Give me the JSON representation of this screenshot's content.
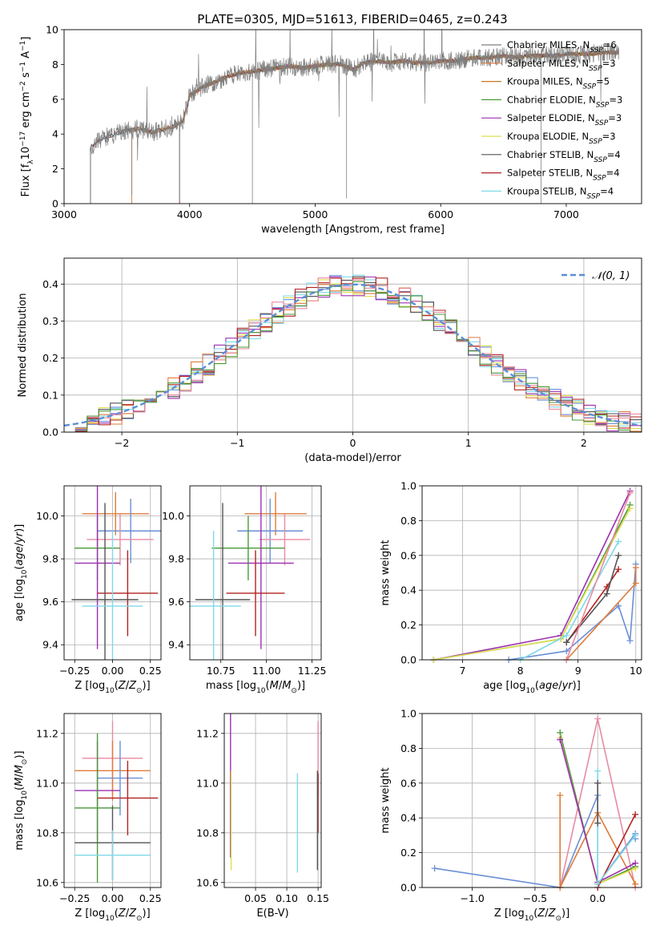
{
  "figure_title": "PLATE=0305, MJD=51613, FIBERID=0465, z=0.243",
  "colors": {
    "chabrier_miles": "#7f7f7f",
    "salpeter_miles": "#e07b39",
    "kroupa_miles": "#c8771e",
    "chabrier_elodie": "#4a9a3a",
    "salpeter_elodie": "#9b30b0",
    "kroupa_elodie": "#dede50",
    "chabrier_stelib": "#555555",
    "salpeter_stelib": "#b22222",
    "kroupa_stelib": "#80d8e8",
    "model_blue": "#6a8fd6",
    "pink": "#e88aa0",
    "normal_curve": "#5b8fd6",
    "grid": "#b0b0b0"
  },
  "chart_data": [
    {
      "id": "spectrum",
      "type": "line",
      "title": "PLATE=0305, MJD=51613, FIBERID=0465, z=0.243",
      "xlabel": "wavelength [Angstrom, rest frame]",
      "ylabel": "Flux [f_λ 10^-17 erg cm^-2 s^-1 A^-1]",
      "xlim": [
        3000,
        7600
      ],
      "ylim": [
        0,
        10
      ],
      "xticks": [
        3000,
        4000,
        5000,
        6000,
        7000
      ],
      "yticks": [
        0,
        2,
        4,
        6,
        8,
        10
      ],
      "grid": false,
      "legend_position": "top-right",
      "legend": [
        {
          "label": "Chabrier MILES, N",
          "sub": "SSP",
          "tail": "=6",
          "color_key": "chabrier_miles"
        },
        {
          "label": "Salpeter MILES, N",
          "sub": "SSP",
          "tail": "=3",
          "color_key": "salpeter_miles"
        },
        {
          "label": "Kroupa MILES, N",
          "sub": "SSP",
          "tail": "=5",
          "color_key": "kroupa_miles"
        },
        {
          "label": "Chabrier ELODIE, N",
          "sub": "SSP",
          "tail": "=3",
          "color_key": "chabrier_elodie"
        },
        {
          "label": "Salpeter ELODIE, N",
          "sub": "SSP",
          "tail": "=3",
          "color_key": "salpeter_elodie"
        },
        {
          "label": "Kroupa ELODIE, N",
          "sub": "SSP",
          "tail": "=3",
          "color_key": "kroupa_elodie"
        },
        {
          "label": "Chabrier STELIB, N",
          "sub": "SSP",
          "tail": "=4",
          "color_key": "chabrier_stelib"
        },
        {
          "label": "Salpeter STELIB, N",
          "sub": "SSP",
          "tail": "=4",
          "color_key": "salpeter_stelib"
        },
        {
          "label": "Kroupa STELIB, N",
          "sub": "SSP",
          "tail": "=4",
          "color_key": "kroupa_stelib"
        }
      ],
      "continuum": {
        "x": [
          3210,
          3300,
          3400,
          3500,
          3600,
          3700,
          3800,
          3900,
          3950,
          4000,
          4100,
          4200,
          4300,
          4400,
          4500,
          4600,
          4700,
          4800,
          4900,
          5000,
          5100,
          5200,
          5300,
          5400,
          5500,
          5600,
          5700,
          5800,
          5900,
          6000,
          6100,
          6200,
          6300,
          6400,
          6500,
          6600,
          6700,
          6800,
          6900,
          7000,
          7100,
          7200,
          7300
        ],
        "y": [
          3.3,
          3.7,
          4.0,
          4.2,
          4.3,
          4.1,
          4.3,
          4.5,
          4.8,
          6.2,
          6.7,
          7.0,
          7.3,
          7.5,
          7.6,
          7.7,
          7.8,
          7.9,
          7.8,
          7.9,
          8.0,
          8.0,
          7.7,
          8.1,
          8.2,
          8.1,
          8.2,
          8.1,
          8.1,
          8.2,
          8.2,
          8.3,
          8.4,
          8.4,
          8.5,
          8.4,
          8.5,
          8.5,
          8.5,
          8.6,
          8.6,
          8.6,
          8.7
        ]
      }
    },
    {
      "id": "residuals",
      "type": "line",
      "xlabel": "(data-model)/error",
      "ylabel": "Normed distribution",
      "xlim": [
        -2.5,
        2.5
      ],
      "ylim": [
        0,
        0.47
      ],
      "xticks": [
        -2,
        -1,
        0,
        1,
        2
      ],
      "yticks": [
        0.0,
        0.1,
        0.2,
        0.3,
        0.4
      ],
      "grid": true,
      "legend_position": "top-right",
      "legend": [
        {
          "label": "𝒩(0, 1)",
          "color_key": "normal_curve",
          "style": "dashed"
        }
      ],
      "bin_width": 0.1
    },
    {
      "id": "age_vs_Z",
      "type": "scatter",
      "xlabel": "Z [log10(Z/Z⊙)]",
      "ylabel": "age  [log10(age/yr)]",
      "xlim": [
        -0.32,
        0.32
      ],
      "ylim": [
        9.33,
        10.14
      ],
      "xticks": [
        -0.25,
        0.0,
        0.25
      ],
      "yticks": [
        9.4,
        9.6,
        9.8,
        10.0
      ],
      "grid": true,
      "points": [
        {
          "x": 0.02,
          "y": 10.01,
          "xerr": 0.22,
          "yerr": 0.1,
          "color_key": "salpeter_miles"
        },
        {
          "x": 0.12,
          "y": 9.93,
          "xerr": 0.22,
          "yerr": 0.15,
          "color_key": "model_blue"
        },
        {
          "x": 0.05,
          "y": 9.89,
          "xerr": 0.22,
          "yerr": 0.12,
          "color_key": "pink"
        },
        {
          "x": -0.1,
          "y": 9.85,
          "xerr": 0.15,
          "yerr": 0.15,
          "color_key": "chabrier_elodie"
        },
        {
          "x": -0.1,
          "y": 9.78,
          "xerr": 0.15,
          "yerr": 0.4,
          "color_key": "salpeter_elodie"
        },
        {
          "x": 0.1,
          "y": 9.64,
          "xerr": 0.2,
          "yerr": 0.2,
          "color_key": "salpeter_stelib"
        },
        {
          "x": -0.05,
          "y": 9.61,
          "xerr": 0.22,
          "yerr": 0.45,
          "color_key": "chabrier_stelib"
        },
        {
          "x": 0.0,
          "y": 9.58,
          "xerr": 0.2,
          "yerr": 0.35,
          "color_key": "kroupa_stelib"
        }
      ]
    },
    {
      "id": "age_vs_mass",
      "type": "scatter",
      "xlabel": "mass [log10(M/M⊙)]",
      "ylabel": "",
      "xlim": [
        10.58,
        11.3
      ],
      "ylim": [
        9.33,
        10.14
      ],
      "xticks": [
        10.75,
        11.0,
        11.25
      ],
      "yticks": [
        9.4,
        9.6,
        9.8,
        10.0
      ],
      "grid": true,
      "points": [
        {
          "x": 11.05,
          "y": 10.01,
          "xerr": 0.17,
          "yerr": 0.1,
          "color_key": "salpeter_miles"
        },
        {
          "x": 11.02,
          "y": 9.93,
          "xerr": 0.18,
          "yerr": 0.15,
          "color_key": "model_blue"
        },
        {
          "x": 11.1,
          "y": 9.89,
          "xerr": 0.14,
          "yerr": 0.12,
          "color_key": "pink"
        },
        {
          "x": 10.9,
          "y": 9.85,
          "xerr": 0.2,
          "yerr": 0.15,
          "color_key": "chabrier_elodie"
        },
        {
          "x": 10.97,
          "y": 9.78,
          "xerr": 0.18,
          "yerr": 0.4,
          "color_key": "salpeter_elodie"
        },
        {
          "x": 10.94,
          "y": 9.64,
          "xerr": 0.16,
          "yerr": 0.2,
          "color_key": "salpeter_stelib"
        },
        {
          "x": 10.76,
          "y": 9.61,
          "xerr": 0.15,
          "yerr": 0.45,
          "color_key": "chabrier_stelib"
        },
        {
          "x": 10.71,
          "y": 9.58,
          "xerr": 0.15,
          "yerr": 0.35,
          "color_key": "kroupa_stelib"
        }
      ]
    },
    {
      "id": "mass_weight_vs_age",
      "type": "line",
      "xlabel": "age  [log10(age/yr)]",
      "ylabel": "mass weight",
      "xlim": [
        6.3,
        10.1
      ],
      "ylim": [
        0,
        1.0
      ],
      "xticks": [
        7,
        8,
        9,
        10
      ],
      "yticks": [
        0.0,
        0.2,
        0.4,
        0.6,
        0.8,
        1.0
      ],
      "grid": true,
      "series": [
        {
          "color_key": "model_blue",
          "x": [
            7.8,
            8.8,
            9.7,
            9.9,
            10.0
          ],
          "y": [
            0.0,
            0.05,
            0.31,
            0.11,
            0.55
          ]
        },
        {
          "color_key": "salpeter_elodie",
          "x": [
            6.5,
            8.7,
            9.9
          ],
          "y": [
            0.0,
            0.14,
            0.97
          ]
        },
        {
          "color_key": "chabrier_elodie",
          "x": [
            6.5,
            8.7,
            9.9
          ],
          "y": [
            0.0,
            0.12,
            0.89
          ]
        },
        {
          "color_key": "kroupa_elodie",
          "x": [
            6.5,
            8.7,
            9.9
          ],
          "y": [
            0.0,
            0.12,
            0.87
          ]
        },
        {
          "color_key": "kroupa_stelib",
          "x": [
            8.0,
            8.8,
            9.7
          ],
          "y": [
            0.0,
            0.14,
            0.68
          ]
        },
        {
          "color_key": "salpeter_stelib",
          "x": [
            8.8,
            9.5,
            9.7
          ],
          "y": [
            0.1,
            0.42,
            0.52
          ]
        },
        {
          "color_key": "chabrier_stelib",
          "x": [
            8.8,
            9.5,
            9.7
          ],
          "y": [
            0.1,
            0.38,
            0.6
          ]
        },
        {
          "color_key": "salpeter_miles",
          "x": [
            8.8,
            10.0,
            10.0
          ],
          "y": [
            0.0,
            0.44,
            0.53
          ]
        },
        {
          "color_key": "pink",
          "x": [
            8.8,
            9.9
          ],
          "y": [
            0.0,
            0.96
          ]
        }
      ]
    },
    {
      "id": "mass_vs_Z",
      "type": "scatter",
      "xlabel": "Z [log10(Z/Z⊙)]",
      "ylabel": "mass [log10(M/M⊙)]",
      "xlim": [
        -0.32,
        0.32
      ],
      "ylim": [
        10.58,
        11.28
      ],
      "xticks": [
        -0.25,
        0.0,
        0.25
      ],
      "yticks": [
        10.6,
        10.8,
        11.0,
        11.2
      ],
      "grid": true,
      "points": [
        {
          "x": 0.0,
          "y": 11.1,
          "xerr": 0.2,
          "yerr": 0.15,
          "color_key": "pink"
        },
        {
          "x": 0.0,
          "y": 11.05,
          "xerr": 0.25,
          "yerr": 0.12,
          "color_key": "salpeter_miles"
        },
        {
          "x": 0.05,
          "y": 11.02,
          "xerr": 0.15,
          "yerr": 0.15,
          "color_key": "model_blue"
        },
        {
          "x": -0.1,
          "y": 10.97,
          "xerr": 0.15,
          "yerr": 0.2,
          "color_key": "salpeter_elodie"
        },
        {
          "x": 0.1,
          "y": 10.94,
          "xerr": 0.2,
          "yerr": 0.15,
          "color_key": "salpeter_stelib"
        },
        {
          "x": -0.1,
          "y": 10.9,
          "xerr": 0.15,
          "yerr": 0.3,
          "color_key": "chabrier_elodie"
        },
        {
          "x": 0.0,
          "y": 10.76,
          "xerr": 0.25,
          "yerr": 0.15,
          "color_key": "chabrier_stelib"
        },
        {
          "x": 0.0,
          "y": 10.71,
          "xerr": 0.25,
          "yerr": 0.1,
          "color_key": "kroupa_stelib"
        }
      ]
    },
    {
      "id": "mass_vs_EBV",
      "type": "scatter",
      "xlabel": "E(B-V)",
      "ylabel": "",
      "xlim": [
        0.0,
        0.155
      ],
      "ylim": [
        10.58,
        11.28
      ],
      "xticks": [
        0.05,
        0.1,
        0.15
      ],
      "yticks": [
        10.6,
        10.8,
        11.0,
        11.2
      ],
      "grid": true,
      "points": [
        {
          "x": 0.01,
          "y": 11.0,
          "yerr": 0.3,
          "color_key": "salpeter_elodie"
        },
        {
          "x": 0.011,
          "y": 10.85,
          "yerr": 0.2,
          "color_key": "kroupa_elodie"
        },
        {
          "x": 0.117,
          "y": 10.84,
          "yerr": 0.2,
          "color_key": "kroupa_stelib"
        },
        {
          "x": 0.15,
          "y": 11.1,
          "yerr": 0.15,
          "color_key": "pink"
        },
        {
          "x": 0.15,
          "y": 10.92,
          "yerr": 0.12,
          "color_key": "salpeter_stelib"
        },
        {
          "x": 0.149,
          "y": 10.85,
          "yerr": 0.2,
          "color_key": "chabrier_stelib"
        }
      ]
    },
    {
      "id": "mass_weight_vs_Z",
      "type": "line",
      "xlabel": "Z [log10(Z/Z⊙)]",
      "ylabel": "mass weight",
      "xlim": [
        -1.4,
        0.35
      ],
      "ylim": [
        0,
        1.0
      ],
      "xticks": [
        -1.0,
        -0.5,
        0.0
      ],
      "yticks": [
        0.0,
        0.2,
        0.4,
        0.6,
        0.8,
        1.0
      ],
      "grid": true,
      "series": [
        {
          "color_key": "model_blue",
          "x": [
            -1.3,
            -0.3,
            0.0,
            0.0,
            0.3,
            0.3
          ],
          "y": [
            0.11,
            0.0,
            0.53,
            0.02,
            0.31,
            0.28
          ]
        },
        {
          "color_key": "pink",
          "x": [
            -0.3,
            0.0,
            0.3
          ],
          "y": [
            0.0,
            0.97,
            0.0
          ]
        },
        {
          "color_key": "salpeter_miles",
          "x": [
            -0.3,
            -0.3,
            0.0,
            0.3
          ],
          "y": [
            0.53,
            0.0,
            0.43,
            0.02
          ]
        },
        {
          "color_key": "chabrier_elodie",
          "x": [
            -0.3,
            0.0,
            0.3
          ],
          "y": [
            0.89,
            0.02,
            0.12
          ]
        },
        {
          "color_key": "kroupa_elodie",
          "x": [
            -0.3,
            0.0,
            0.3
          ],
          "y": [
            0.86,
            0.02,
            0.11
          ]
        },
        {
          "color_key": "salpeter_elodie",
          "x": [
            -0.3,
            0.0,
            0.3
          ],
          "y": [
            0.85,
            0.03,
            0.14
          ]
        },
        {
          "color_key": "salpeter_stelib",
          "x": [
            0.0,
            0.3
          ],
          "y": [
            0.0,
            0.42
          ]
        },
        {
          "color_key": "kroupa_stelib",
          "x": [
            0.0,
            0.0,
            0.3
          ],
          "y": [
            0.67,
            0.02,
            0.3
          ]
        },
        {
          "color_key": "chabrier_stelib",
          "x": [
            0.0,
            0.0
          ],
          "y": [
            0.6,
            0.37
          ]
        }
      ]
    }
  ]
}
